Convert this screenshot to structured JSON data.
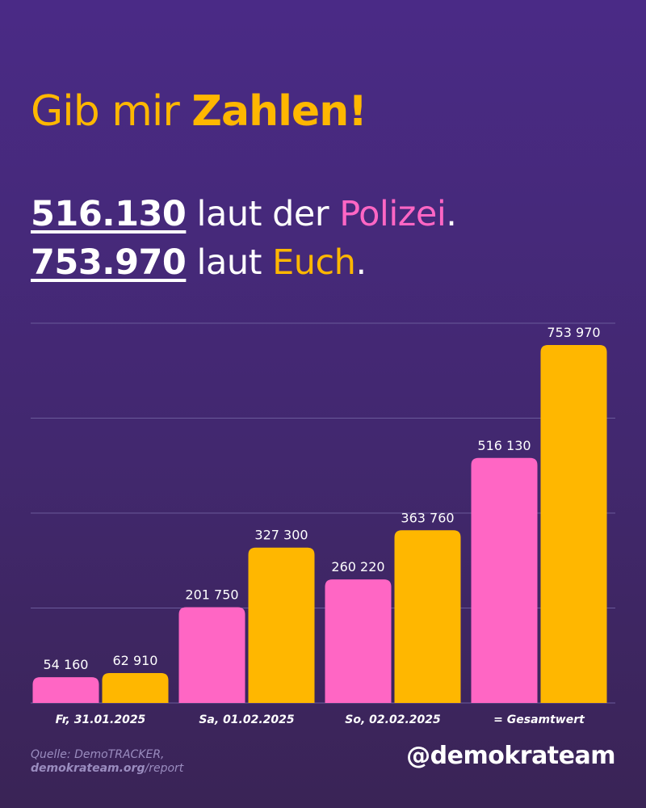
{
  "header": {
    "title_part1": "Gib mir ",
    "title_part2": "Zahlen!",
    "line1": {
      "number": "516.130",
      "middle": " laut der ",
      "source": "Polizei",
      "end": "."
    },
    "line2": {
      "number": "753.970",
      "middle": " laut ",
      "source": "Euch",
      "end": "."
    }
  },
  "colors": {
    "background": "#45297a",
    "police": "#ff66c4",
    "community": "#ffb700",
    "text": "#ffffff",
    "grid": "#6a5a9a"
  },
  "chart_data": {
    "type": "bar",
    "categories": [
      "Fr, 31.01.2025",
      "Sa, 01.02.2025",
      "So, 02.02.2025",
      "= Gesamtwert"
    ],
    "series": [
      {
        "values": [
          54160,
          201750,
          260220,
          516130
        ],
        "labels": [
          "54 160",
          "201 750",
          "260 220",
          "516 130"
        ],
        "color": "#ff66c4"
      },
      {
        "values": [
          62910,
          327300,
          363760,
          753970
        ],
        "labels": [
          "62 910",
          "327 300",
          "363 760",
          "753 970"
        ],
        "color": "#ffb700"
      }
    ],
    "ylim": [
      0,
      800000
    ],
    "grid": true,
    "gridlines": [
      200000,
      400000,
      600000,
      800000
    ]
  },
  "footer": {
    "source_line1": "Quelle: DemoTRACKER,",
    "source_domain": "demokrateam.org",
    "source_path": "/report",
    "handle": "@demokrateam"
  }
}
